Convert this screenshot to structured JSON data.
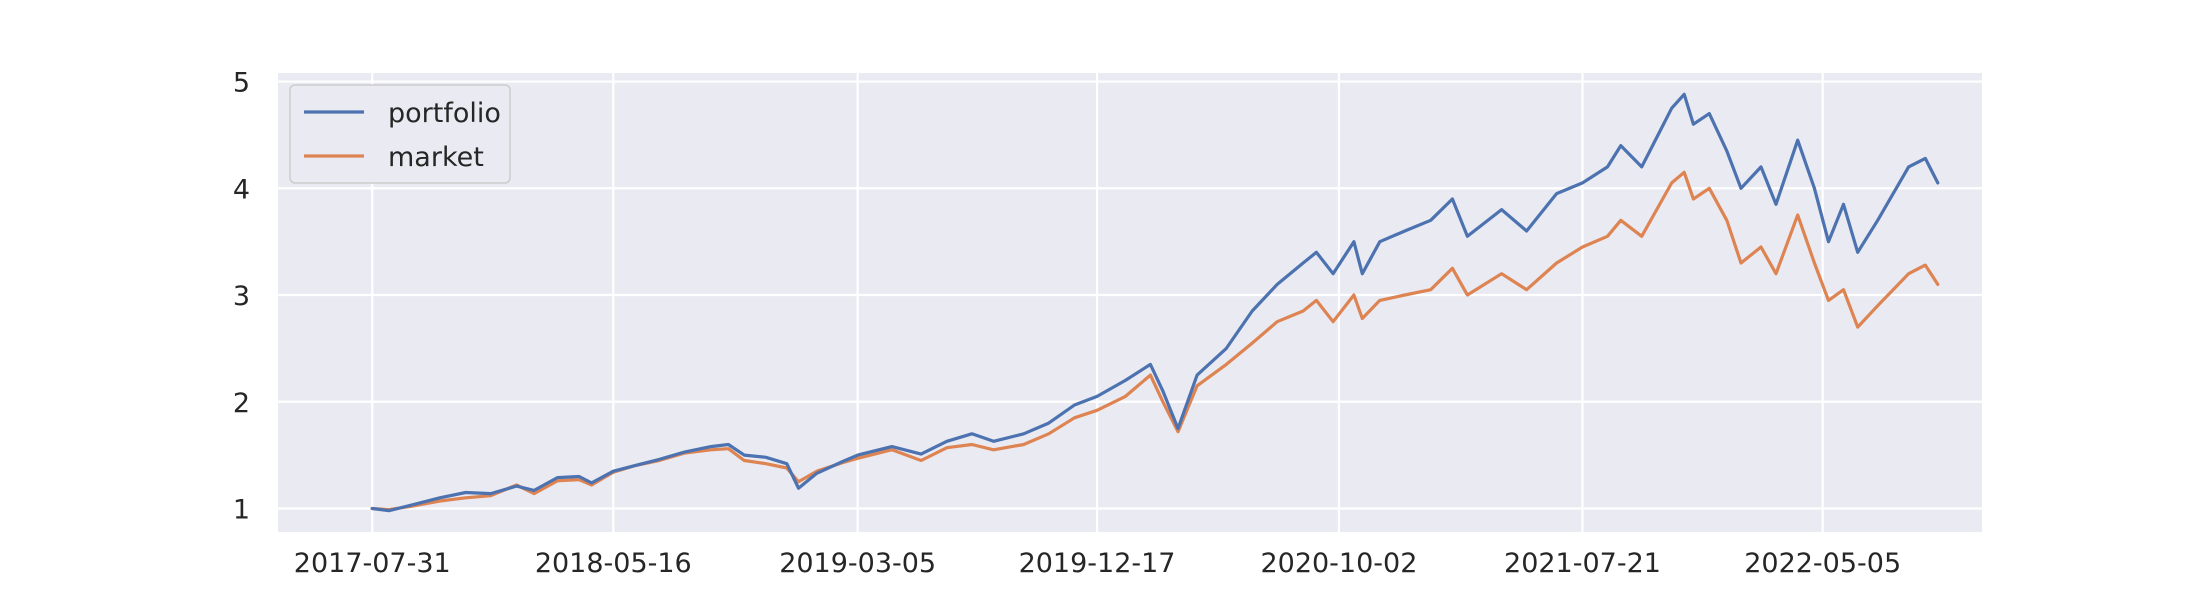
{
  "chart_data": {
    "type": "line",
    "title": "",
    "xlabel": "",
    "ylabel": "",
    "x_ticks": [
      "2017-07-31",
      "2018-05-16",
      "2019-03-05",
      "2019-12-17",
      "2020-10-02",
      "2021-07-21",
      "2022-05-05"
    ],
    "y_ticks": [
      1,
      2,
      3,
      4,
      5
    ],
    "xlim": [
      "2017-04-09",
      "2022-11-12"
    ],
    "ylim": [
      0.78,
      5.08
    ],
    "grid": true,
    "legend": "top-left",
    "series": [
      {
        "name": "portfolio",
        "color": "#4c72b0",
        "points": [
          [
            "2017-07-31",
            1.0
          ],
          [
            "2017-08-20",
            0.98
          ],
          [
            "2017-09-15",
            1.03
          ],
          [
            "2017-10-20",
            1.1
          ],
          [
            "2017-11-20",
            1.15
          ],
          [
            "2017-12-20",
            1.14
          ],
          [
            "2018-01-20",
            1.21
          ],
          [
            "2018-02-10",
            1.17
          ],
          [
            "2018-03-10",
            1.29
          ],
          [
            "2018-04-05",
            1.3
          ],
          [
            "2018-04-20",
            1.24
          ],
          [
            "2018-05-16",
            1.35
          ],
          [
            "2018-06-10",
            1.4
          ],
          [
            "2018-07-10",
            1.46
          ],
          [
            "2018-08-10",
            1.53
          ],
          [
            "2018-09-10",
            1.58
          ],
          [
            "2018-10-01",
            1.6
          ],
          [
            "2018-10-20",
            1.5
          ],
          [
            "2018-11-15",
            1.48
          ],
          [
            "2018-12-10",
            1.42
          ],
          [
            "2018-12-24",
            1.19
          ],
          [
            "2019-01-15",
            1.33
          ],
          [
            "2019-02-15",
            1.44
          ],
          [
            "2019-03-05",
            1.5
          ],
          [
            "2019-04-15",
            1.58
          ],
          [
            "2019-05-20",
            1.51
          ],
          [
            "2019-06-20",
            1.63
          ],
          [
            "2019-07-20",
            1.7
          ],
          [
            "2019-08-15",
            1.63
          ],
          [
            "2019-09-20",
            1.7
          ],
          [
            "2019-10-20",
            1.8
          ],
          [
            "2019-11-20",
            1.97
          ],
          [
            "2019-12-17",
            2.05
          ],
          [
            "2020-01-20",
            2.2
          ],
          [
            "2020-02-19",
            2.35
          ],
          [
            "2020-03-05",
            2.1
          ],
          [
            "2020-03-23",
            1.75
          ],
          [
            "2020-04-15",
            2.25
          ],
          [
            "2020-05-20",
            2.5
          ],
          [
            "2020-06-20",
            2.85
          ],
          [
            "2020-07-20",
            3.1
          ],
          [
            "2020-08-20",
            3.3
          ],
          [
            "2020-09-05",
            3.4
          ],
          [
            "2020-09-25",
            3.2
          ],
          [
            "2020-10-20",
            3.5
          ],
          [
            "2020-10-30",
            3.2
          ],
          [
            "2020-11-20",
            3.5
          ],
          [
            "2020-12-20",
            3.6
          ],
          [
            "2021-01-20",
            3.7
          ],
          [
            "2021-02-15",
            3.9
          ],
          [
            "2021-03-05",
            3.55
          ],
          [
            "2021-04-15",
            3.8
          ],
          [
            "2021-05-15",
            3.6
          ],
          [
            "2021-06-20",
            3.95
          ],
          [
            "2021-07-21",
            4.05
          ],
          [
            "2021-08-20",
            4.2
          ],
          [
            "2021-09-05",
            4.4
          ],
          [
            "2021-09-30",
            4.2
          ],
          [
            "2021-11-05",
            4.75
          ],
          [
            "2021-11-20",
            4.88
          ],
          [
            "2021-12-01",
            4.6
          ],
          [
            "2021-12-20",
            4.7
          ],
          [
            "2022-01-10",
            4.35
          ],
          [
            "2022-01-27",
            4.0
          ],
          [
            "2022-02-20",
            4.2
          ],
          [
            "2022-03-10",
            3.85
          ],
          [
            "2022-04-05",
            4.45
          ],
          [
            "2022-04-25",
            4.0
          ],
          [
            "2022-05-12",
            3.5
          ],
          [
            "2022-05-30",
            3.85
          ],
          [
            "2022-06-16",
            3.4
          ],
          [
            "2022-07-10",
            3.7
          ],
          [
            "2022-08-16",
            4.2
          ],
          [
            "2022-09-05",
            4.28
          ],
          [
            "2022-09-20",
            4.05
          ]
        ]
      },
      {
        "name": "market",
        "color": "#dd8452",
        "points": [
          [
            "2017-07-31",
            1.0
          ],
          [
            "2017-08-20",
            0.99
          ],
          [
            "2017-09-15",
            1.02
          ],
          [
            "2017-10-20",
            1.07
          ],
          [
            "2017-11-20",
            1.1
          ],
          [
            "2017-12-20",
            1.12
          ],
          [
            "2018-01-20",
            1.22
          ],
          [
            "2018-02-10",
            1.14
          ],
          [
            "2018-03-10",
            1.26
          ],
          [
            "2018-04-05",
            1.27
          ],
          [
            "2018-04-20",
            1.22
          ],
          [
            "2018-05-16",
            1.34
          ],
          [
            "2018-06-10",
            1.4
          ],
          [
            "2018-07-10",
            1.45
          ],
          [
            "2018-08-10",
            1.52
          ],
          [
            "2018-09-10",
            1.55
          ],
          [
            "2018-10-01",
            1.56
          ],
          [
            "2018-10-20",
            1.45
          ],
          [
            "2018-11-15",
            1.42
          ],
          [
            "2018-12-10",
            1.38
          ],
          [
            "2018-12-24",
            1.25
          ],
          [
            "2019-01-15",
            1.35
          ],
          [
            "2019-02-15",
            1.43
          ],
          [
            "2019-03-05",
            1.47
          ],
          [
            "2019-04-15",
            1.55
          ],
          [
            "2019-05-20",
            1.45
          ],
          [
            "2019-06-20",
            1.57
          ],
          [
            "2019-07-20",
            1.6
          ],
          [
            "2019-08-15",
            1.55
          ],
          [
            "2019-09-20",
            1.6
          ],
          [
            "2019-10-20",
            1.7
          ],
          [
            "2019-11-20",
            1.85
          ],
          [
            "2019-12-17",
            1.92
          ],
          [
            "2020-01-20",
            2.05
          ],
          [
            "2020-02-19",
            2.25
          ],
          [
            "2020-03-05",
            2.0
          ],
          [
            "2020-03-23",
            1.72
          ],
          [
            "2020-04-15",
            2.15
          ],
          [
            "2020-05-20",
            2.35
          ],
          [
            "2020-06-20",
            2.55
          ],
          [
            "2020-07-20",
            2.75
          ],
          [
            "2020-08-20",
            2.85
          ],
          [
            "2020-09-05",
            2.95
          ],
          [
            "2020-09-25",
            2.75
          ],
          [
            "2020-10-20",
            3.0
          ],
          [
            "2020-10-30",
            2.78
          ],
          [
            "2020-11-20",
            2.95
          ],
          [
            "2020-12-20",
            3.0
          ],
          [
            "2021-01-20",
            3.05
          ],
          [
            "2021-02-15",
            3.25
          ],
          [
            "2021-03-05",
            3.0
          ],
          [
            "2021-04-15",
            3.2
          ],
          [
            "2021-05-15",
            3.05
          ],
          [
            "2021-06-20",
            3.3
          ],
          [
            "2021-07-21",
            3.45
          ],
          [
            "2021-08-20",
            3.55
          ],
          [
            "2021-09-05",
            3.7
          ],
          [
            "2021-09-30",
            3.55
          ],
          [
            "2021-11-05",
            4.05
          ],
          [
            "2021-11-20",
            4.15
          ],
          [
            "2021-12-01",
            3.9
          ],
          [
            "2021-12-20",
            4.0
          ],
          [
            "2022-01-10",
            3.7
          ],
          [
            "2022-01-27",
            3.3
          ],
          [
            "2022-02-20",
            3.45
          ],
          [
            "2022-03-10",
            3.2
          ],
          [
            "2022-04-05",
            3.75
          ],
          [
            "2022-04-25",
            3.3
          ],
          [
            "2022-05-12",
            2.95
          ],
          [
            "2022-05-30",
            3.05
          ],
          [
            "2022-06-16",
            2.7
          ],
          [
            "2022-07-10",
            2.9
          ],
          [
            "2022-08-16",
            3.2
          ],
          [
            "2022-09-05",
            3.28
          ],
          [
            "2022-09-20",
            3.1
          ]
        ]
      }
    ]
  }
}
